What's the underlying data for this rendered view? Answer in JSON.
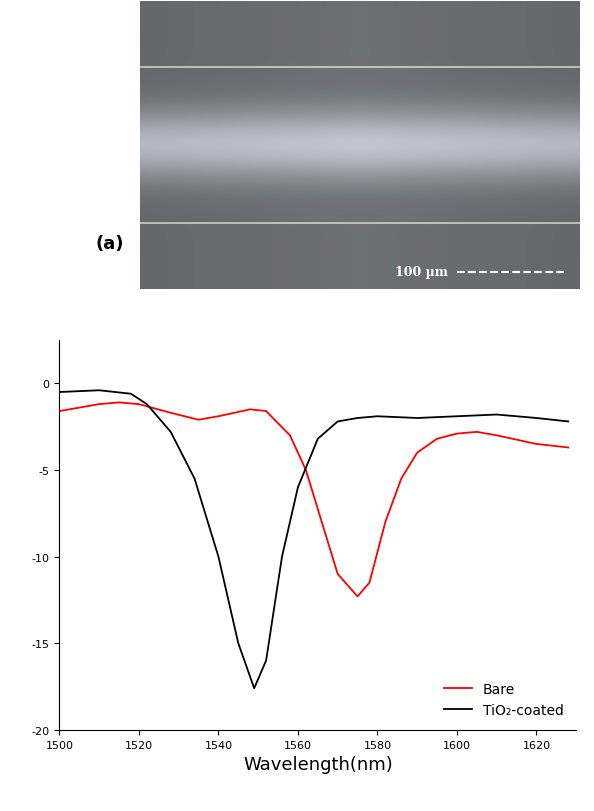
{
  "image": {
    "label": "(a)",
    "scale_bar_label": "100 µm"
  },
  "chart_data": {
    "type": "line",
    "x_label": "Wavelength(nm)",
    "xlim": [
      1500,
      1630
    ],
    "xticks": [
      1500,
      1520,
      1540,
      1560,
      1580,
      1600,
      1620
    ],
    "ylim": [
      -20,
      2.5
    ],
    "yticks": [
      -20,
      -15,
      -10,
      -5,
      0
    ],
    "legend": "lower right",
    "grid": false,
    "series": [
      {
        "name": "Bare",
        "color": "#ff0000",
        "x": [
          1500,
          1510,
          1515,
          1520,
          1528,
          1535,
          1540,
          1548,
          1552,
          1558,
          1562,
          1566,
          1570,
          1575,
          1578,
          1582,
          1586,
          1590,
          1595,
          1600,
          1605,
          1610,
          1620,
          1628
        ],
        "values": [
          -1.6,
          -1.2,
          -1.1,
          -1.2,
          -1.7,
          -2.1,
          -1.9,
          -1.5,
          -1.6,
          -3.0,
          -5.0,
          -8.0,
          -11.0,
          -12.3,
          -11.5,
          -8.0,
          -5.5,
          -4.0,
          -3.2,
          -2.9,
          -2.8,
          -3.0,
          -3.5,
          -3.7
        ]
      },
      {
        "name": "TiO₂-coated",
        "color": "#000000",
        "x": [
          1500,
          1510,
          1518,
          1522,
          1528,
          1534,
          1540,
          1545,
          1549,
          1552,
          1556,
          1560,
          1565,
          1570,
          1575,
          1580,
          1590,
          1600,
          1610,
          1620,
          1628
        ],
        "values": [
          -0.5,
          -0.4,
          -0.6,
          -1.2,
          -2.8,
          -5.5,
          -10.0,
          -15.0,
          -17.6,
          -16.0,
          -10.0,
          -6.0,
          -3.2,
          -2.2,
          -2.0,
          -1.9,
          -2.0,
          -1.9,
          -1.8,
          -2.0,
          -2.2
        ]
      }
    ]
  }
}
